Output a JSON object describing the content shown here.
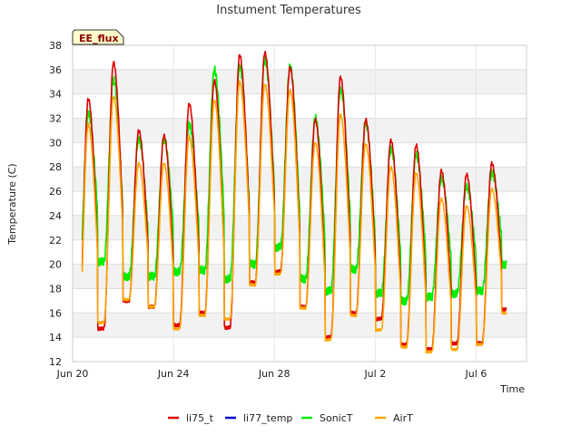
{
  "chart_data": {
    "type": "line",
    "title": "Instument Temperatures",
    "xlabel": "Time",
    "ylabel": "Temperature (C)",
    "badge": "EE_flux",
    "ylim": [
      12,
      38
    ],
    "yticks": [
      12,
      14,
      16,
      18,
      20,
      22,
      24,
      26,
      28,
      30,
      32,
      34,
      36,
      38
    ],
    "xlim": [
      "2020-06-20",
      "2020-07-08"
    ],
    "xticks": [
      {
        "date": "2020-06-20",
        "label": "Jun 20"
      },
      {
        "date": "2020-06-24",
        "label": "Jun 24"
      },
      {
        "date": "2020-06-28",
        "label": "Jun 28"
      },
      {
        "date": "2020-07-02",
        "label": "Jul 2"
      },
      {
        "date": "2020-07-06",
        "label": "Jul 6"
      }
    ],
    "background_bands": true,
    "legend_position": "bottom",
    "series": [
      {
        "name": "li75_t",
        "color": "#dd0000"
      },
      {
        "name": "li77_temp",
        "color": "#0000cc"
      },
      {
        "name": "SonicT",
        "color": "#00ee00"
      },
      {
        "name": "AirT",
        "color": "#ffa500"
      }
    ],
    "daily": {
      "dates": [
        "2020-06-20",
        "2020-06-21",
        "2020-06-22",
        "2020-06-23",
        "2020-06-24",
        "2020-06-25",
        "2020-06-26",
        "2020-06-27",
        "2020-06-28",
        "2020-06-29",
        "2020-06-30",
        "2020-07-01",
        "2020-07-02",
        "2020-07-03",
        "2020-07-04",
        "2020-07-05",
        "2020-07-06",
        "2020-07-07"
      ],
      "li75_t_max": [
        33.6,
        36.6,
        31.0,
        30.6,
        33.2,
        35.1,
        37.2,
        37.4,
        36.2,
        31.9,
        35.4,
        31.9,
        30.2,
        29.8,
        27.7,
        27.4,
        28.3,
        20.0
      ],
      "li75_t_min": [
        14.0,
        14.7,
        17.0,
        16.5,
        15.0,
        16.0,
        14.8,
        18.5,
        19.4,
        16.5,
        14.0,
        16.0,
        15.5,
        13.4,
        13.0,
        13.5,
        13.5,
        16.3
      ],
      "SonicT_max": [
        32.4,
        35.2,
        30.3,
        30.3,
        31.5,
        36.0,
        36.3,
        36.8,
        36.3,
        32.0,
        34.4,
        31.6,
        29.5,
        29.0,
        27.1,
        26.4,
        27.5,
        20.0
      ],
      "SonicT_min": [
        18.0,
        20.2,
        19.0,
        19.0,
        19.4,
        19.5,
        18.8,
        20.0,
        21.4,
        18.8,
        17.8,
        19.6,
        17.6,
        17.0,
        17.3,
        17.6,
        17.8,
        20.0
      ],
      "AirT_max": [
        31.5,
        33.8,
        28.3,
        28.3,
        30.5,
        33.5,
        35.0,
        34.8,
        34.3,
        30.0,
        32.3,
        29.9,
        28.0,
        27.5,
        25.4,
        24.8,
        26.2,
        19.8
      ],
      "AirT_min": [
        14.2,
        15.2,
        17.1,
        16.5,
        14.7,
        15.8,
        15.5,
        18.3,
        19.2,
        16.4,
        13.8,
        15.8,
        14.6,
        13.2,
        12.8,
        13.0,
        13.4,
        16.0
      ]
    }
  }
}
